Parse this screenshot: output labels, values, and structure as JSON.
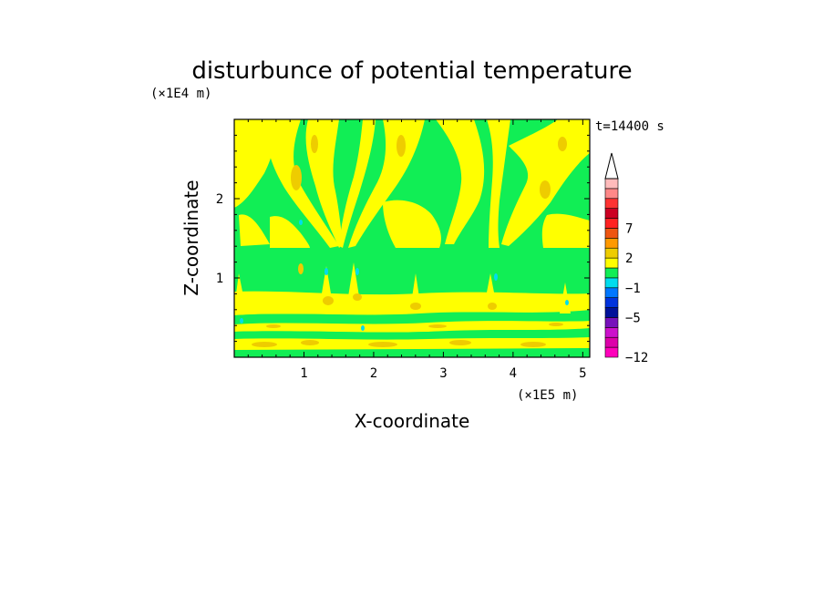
{
  "chart_data": {
    "type": "heatmap",
    "title": "disturbunce of potential temperature",
    "xlabel": "X-coordinate",
    "ylabel": "Z-coordinate",
    "x_unit": "(×1E5 m)",
    "y_unit": "(×1E4 m)",
    "time_label": "t=14400 s",
    "xlim": [
      0,
      5.1
    ],
    "ylim": [
      0,
      3.0
    ],
    "x_ticks": [
      {
        "value": 1,
        "label": "1"
      },
      {
        "value": 2,
        "label": "2"
      },
      {
        "value": 3,
        "label": "3"
      },
      {
        "value": 4,
        "label": "4"
      },
      {
        "value": 5,
        "label": "5"
      }
    ],
    "y_ticks": [
      {
        "value": 1,
        "label": "1"
      },
      {
        "value": 2,
        "label": "2"
      }
    ],
    "colorbar": {
      "colors": [
        "#ff00bb",
        "#dd00aa",
        "#cc11cc",
        "#7711bb",
        "#001199",
        "#0033dd",
        "#0077ff",
        "#00ddee",
        "#11ee55",
        "#ffff00",
        "#eecc00",
        "#ff9900",
        "#ee5511",
        "#ff2222",
        "#cc0022",
        "#ff3333",
        "#ff8888",
        "#ffbbbb"
      ],
      "labels": [
        {
          "index": 0,
          "label": "−12"
        },
        {
          "index": 4,
          "label": "−5"
        },
        {
          "index": 7,
          "label": "−1"
        },
        {
          "index": 10,
          "label": "2"
        },
        {
          "index": 13,
          "label": "7"
        }
      ],
      "extend_top": "white-arrow"
    },
    "field_colors": {
      "background": "#11ee55",
      "positive": "#ffff00",
      "strong_positive": "#eecc00",
      "negative": "#00ddee"
    }
  }
}
